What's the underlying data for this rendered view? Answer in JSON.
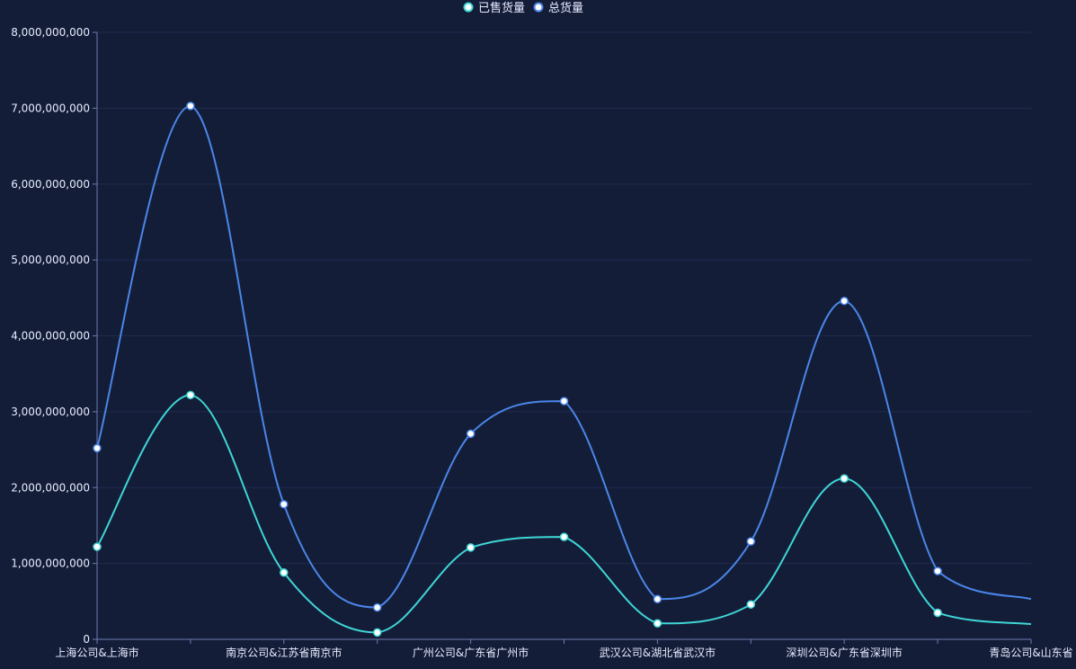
{
  "chart_data": {
    "type": "line",
    "smooth": true,
    "categories": [
      "上海公司&上海市",
      "",
      "南京公司&江苏省南京市",
      "",
      "广州公司&广东省广州市",
      "",
      "武汉公司&湖北省武汉市",
      "",
      "深圳公司&广东省深圳市",
      "",
      "青岛公司&山东省"
    ],
    "ylim": [
      0,
      8000000000
    ],
    "yticks": [
      0,
      1000000000,
      2000000000,
      3000000000,
      4000000000,
      5000000000,
      6000000000,
      7000000000,
      8000000000
    ],
    "ytick_labels": [
      "0",
      "1,000,000,000",
      "2,000,000,000",
      "3,000,000,000",
      "4,000,000,000",
      "5,000,000,000",
      "6,000,000,000",
      "7,000,000,000",
      "8,000,000,000"
    ],
    "grid": true,
    "legend_position": "top-center",
    "series": [
      {
        "name": "已售货量",
        "color": "#3fd6d6",
        "values": [
          1220000000,
          3220000000,
          880000000,
          90000000,
          1210000000,
          1350000000,
          210000000,
          460000000,
          2120000000,
          350000000,
          200000000
        ]
      },
      {
        "name": "总货量",
        "color": "#4a86e8",
        "values": [
          2520000000,
          7030000000,
          1780000000,
          420000000,
          2710000000,
          3140000000,
          530000000,
          1290000000,
          4460000000,
          900000000,
          530000000
        ]
      }
    ]
  }
}
